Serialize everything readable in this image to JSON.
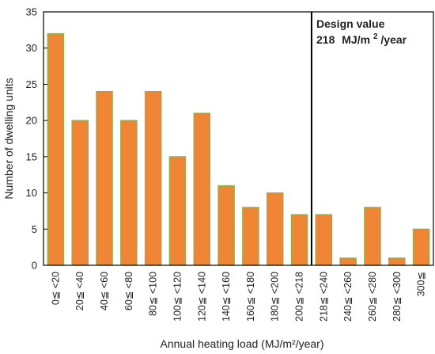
{
  "chart_data": {
    "type": "bar",
    "categories": [
      "0≦ <20",
      "20≦ <40",
      "40≦ <60",
      "60≦ <80",
      "80≦ <100",
      "100≦ <120",
      "120≦ <140",
      "140≦ <160",
      "160≦ <180",
      "180≦ <200",
      "200≦ <218",
      "218≦ <240",
      "240≦ <260",
      "260≦ <280",
      "280≦ <300",
      "300≦"
    ],
    "values": [
      32,
      20,
      24,
      20,
      24,
      15,
      21,
      11,
      8,
      10,
      7,
      7,
      1,
      8,
      1,
      5
    ],
    "xlabel": "Annual heating load (MJ/m²/year)",
    "ylabel": "Number of dwelling units",
    "ylim": [
      0,
      35
    ],
    "yticks": [
      0,
      5,
      10,
      15,
      20,
      25,
      30,
      35
    ],
    "grid": false,
    "bar_color": "#ef8535",
    "bar_edge_color": "#8db04a",
    "divider_after_category": "200≦ <218",
    "annotation": {
      "line1": "Design value",
      "line2_number": "218",
      "line2_unit_prefix": "MJ/m",
      "line2_unit_sup": "2",
      "line2_unit_suffix": "/year"
    }
  }
}
